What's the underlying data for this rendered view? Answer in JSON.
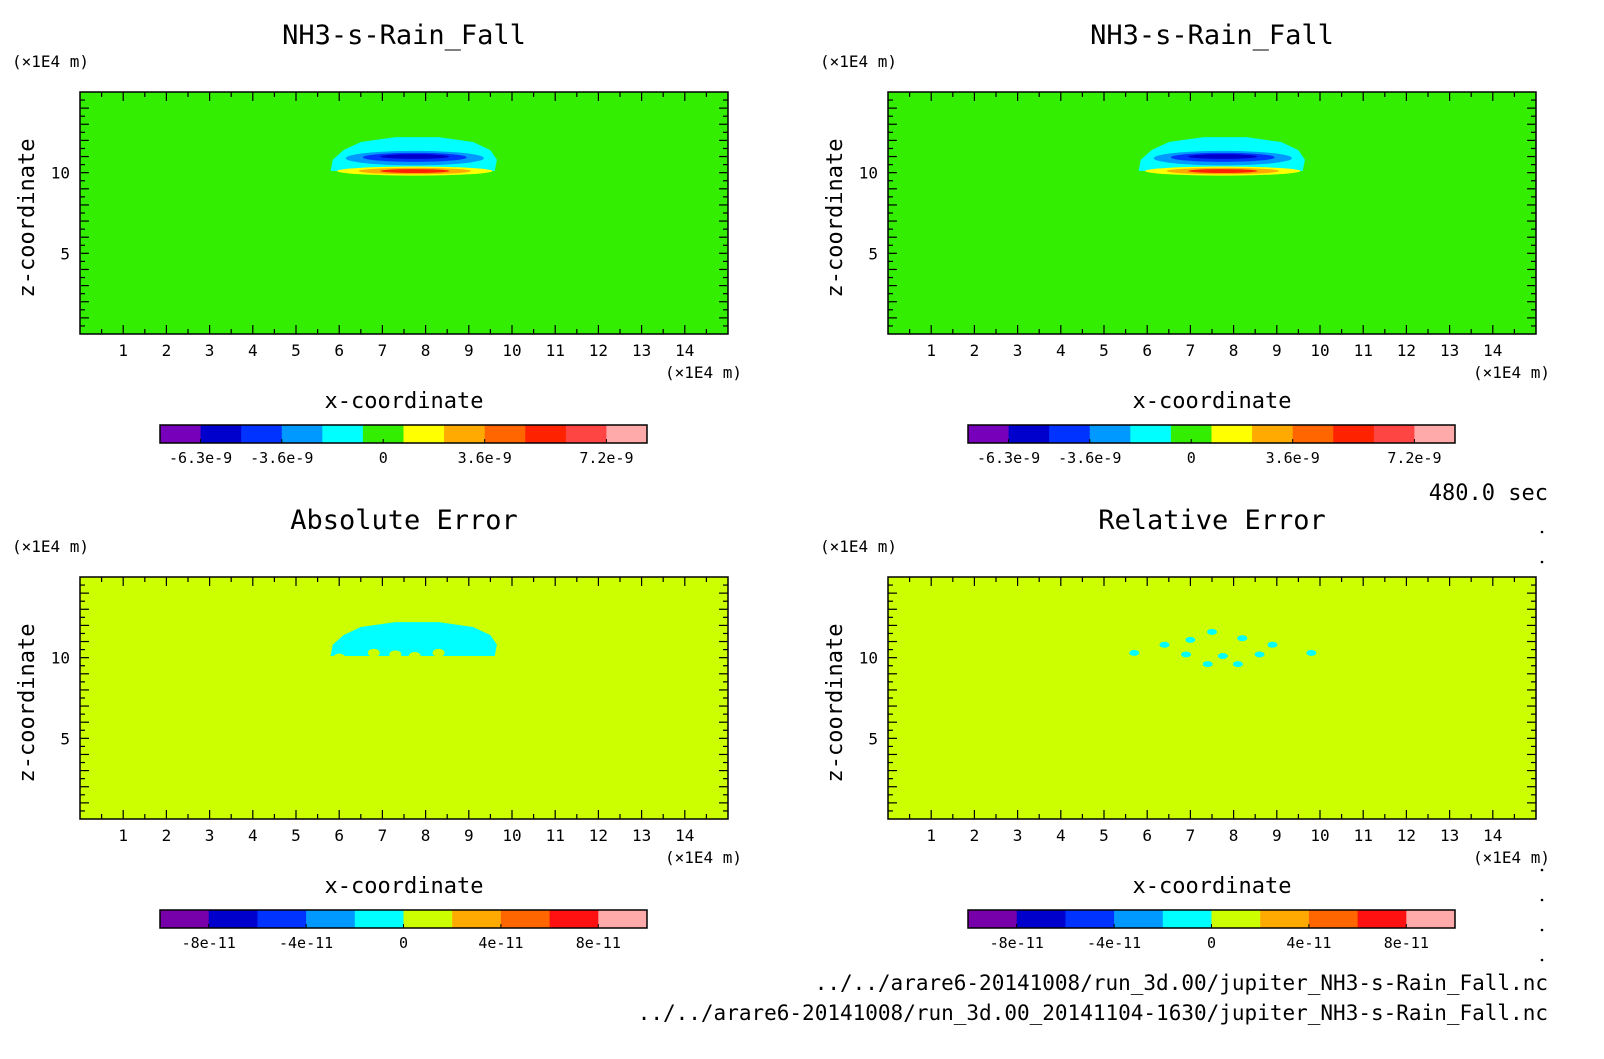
{
  "time_label": "480.0 sec",
  "files": [
    "../../arare6-20141008/run_3d.00/jupiter_NH3-s-Rain_Fall.nc",
    "../../arare6-20141008/run_3d.00_20141104-1630/jupiter_NH3-s-Rain_Fall.nc"
  ],
  "colors": {
    "bg_green": "#33ee00",
    "bg_yellowgreen": "#d4ff00",
    "cyan": "#00ffff"
  },
  "chart_data": [
    {
      "type": "heatmap",
      "title": "NH3-s-Rain_Fall",
      "xlabel": "x-coordinate",
      "ylabel": "z-coordinate",
      "x_unit": "(×1E4 m)",
      "y_unit": "(×1E4 m)",
      "xlim": [
        0,
        15
      ],
      "ylim": [
        0,
        15
      ],
      "x_ticks": [
        "1",
        "2",
        "3",
        "4",
        "5",
        "6",
        "7",
        "8",
        "9",
        "10",
        "11",
        "12",
        "13",
        "14"
      ],
      "y_ticks": [
        "5",
        "10"
      ],
      "colorbar": {
        "colors": [
          "#7700bb",
          "#0000cc",
          "#0033ff",
          "#0099ff",
          "#00ffff",
          "#33ee00",
          "#ffff00",
          "#ffaa00",
          "#ff6600",
          "#ff2200",
          "#ff4444",
          "#ffaaaa"
        ],
        "tick_labels": [
          "-6.3e-9",
          "-3.6e-9",
          "0",
          "3.6e-9",
          "7.2e-9"
        ]
      }
    },
    {
      "type": "heatmap",
      "title": "NH3-s-Rain_Fall",
      "xlabel": "x-coordinate",
      "ylabel": "z-coordinate",
      "x_unit": "(×1E4 m)",
      "y_unit": "(×1E4 m)",
      "xlim": [
        0,
        15
      ],
      "ylim": [
        0,
        15
      ],
      "x_ticks": [
        "1",
        "2",
        "3",
        "4",
        "5",
        "6",
        "7",
        "8",
        "9",
        "10",
        "11",
        "12",
        "13",
        "14"
      ],
      "y_ticks": [
        "5",
        "10"
      ],
      "colorbar": {
        "colors": [
          "#7700bb",
          "#0000cc",
          "#0033ff",
          "#0099ff",
          "#00ffff",
          "#33ee00",
          "#ffff00",
          "#ffaa00",
          "#ff6600",
          "#ff2200",
          "#ff4444",
          "#ffaaaa"
        ],
        "tick_labels": [
          "-6.3e-9",
          "-3.6e-9",
          "0",
          "3.6e-9",
          "7.2e-9"
        ]
      }
    },
    {
      "type": "heatmap",
      "title": "Absolute Error",
      "xlabel": "x-coordinate",
      "ylabel": "z-coordinate",
      "x_unit": "(×1E4 m)",
      "y_unit": "(×1E4 m)",
      "xlim": [
        0,
        15
      ],
      "ylim": [
        0,
        15
      ],
      "x_ticks": [
        "1",
        "2",
        "3",
        "4",
        "5",
        "6",
        "7",
        "8",
        "9",
        "10",
        "11",
        "12",
        "13",
        "14"
      ],
      "y_ticks": [
        "5",
        "10"
      ],
      "colorbar": {
        "colors": [
          "#7700aa",
          "#0000cc",
          "#0033ff",
          "#0099ff",
          "#00ffff",
          "#ccff00",
          "#ffaa00",
          "#ff6600",
          "#ff1111",
          "#ffaaaa"
        ],
        "tick_labels": [
          "-8e-11",
          "-4e-11",
          "0",
          "4e-11",
          "8e-11"
        ]
      }
    },
    {
      "type": "heatmap",
      "title": "Relative Error",
      "xlabel": "x-coordinate",
      "ylabel": "z-coordinate",
      "x_unit": "(×1E4 m)",
      "y_unit": "(×1E4 m)",
      "xlim": [
        0,
        15
      ],
      "ylim": [
        0,
        15
      ],
      "x_ticks": [
        "1",
        "2",
        "3",
        "4",
        "5",
        "6",
        "7",
        "8",
        "9",
        "10",
        "11",
        "12",
        "13",
        "14"
      ],
      "y_ticks": [
        "5",
        "10"
      ],
      "colorbar": {
        "colors": [
          "#7700aa",
          "#0000cc",
          "#0033ff",
          "#0099ff",
          "#00ffff",
          "#ccff00",
          "#ffaa00",
          "#ff6600",
          "#ff1111",
          "#ffaaaa"
        ],
        "tick_labels": [
          "-8e-11",
          "-4e-11",
          "0",
          "4e-11",
          "8e-11"
        ]
      }
    }
  ]
}
